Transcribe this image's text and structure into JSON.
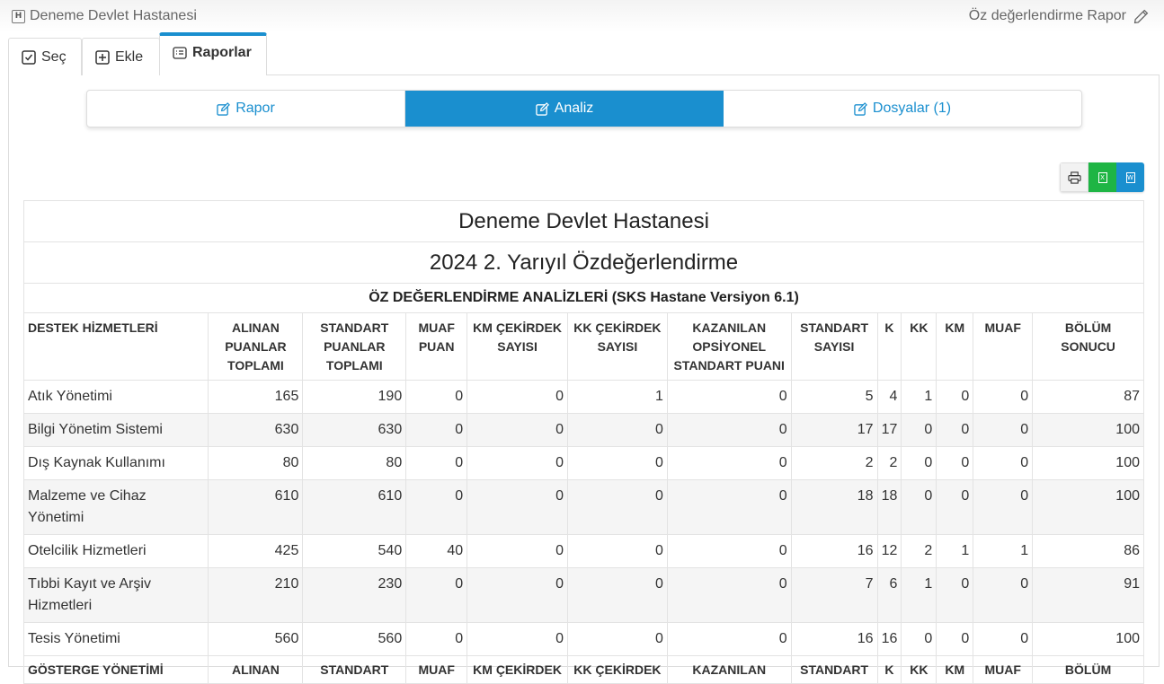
{
  "header": {
    "hospital_name": "Deneme Devlet Hastanesi",
    "report_link": "Öz değerlendirme Rapor"
  },
  "tabs": [
    {
      "label": "Seç",
      "icon": "check-square-icon"
    },
    {
      "label": "Ekle",
      "icon": "plus-square-icon"
    },
    {
      "label": "Raporlar",
      "icon": "list-alt-icon",
      "active": true
    }
  ],
  "segments": [
    {
      "label": "Rapor"
    },
    {
      "label": "Analiz",
      "active": true
    },
    {
      "label": "Dosyalar (1)"
    }
  ],
  "export": {
    "print_icon": "print-icon",
    "excel_icon": "excel-icon",
    "word_icon": "word-icon"
  },
  "report": {
    "title": "Deneme Devlet Hastanesi",
    "subtitle": "2024 2. Yarıyıl Özdeğerlendirme",
    "section_title": "ÖZ DEĞERLENDİRME ANALİZLERİ (SKS Hastane Versiyon 6.1)",
    "columns": [
      "DESTEK HİZMETLERİ",
      "ALINAN PUANLAR TOPLAMI",
      "STANDART PUANLAR TOPLAMI",
      "MUAF PUAN",
      "KM ÇEKİRDEK SAYISI",
      "KK ÇEKİRDEK SAYISI",
      "KAZANILAN OPSİYONEL STANDART PUANI",
      "STANDART SAYISI",
      "K",
      "KK",
      "KM",
      "MUAF",
      "BÖLÜM SONUCU"
    ],
    "rows": [
      [
        "Atık Yönetimi",
        "165",
        "190",
        "0",
        "0",
        "1",
        "0",
        "5",
        "4",
        "1",
        "0",
        "0",
        "87"
      ],
      [
        "Bilgi Yönetim Sistemi",
        "630",
        "630",
        "0",
        "0",
        "0",
        "0",
        "17",
        "17",
        "0",
        "0",
        "0",
        "100"
      ],
      [
        "Dış Kaynak Kullanımı",
        "80",
        "80",
        "0",
        "0",
        "0",
        "0",
        "2",
        "2",
        "0",
        "0",
        "0",
        "100"
      ],
      [
        "Malzeme ve Cihaz Yönetimi",
        "610",
        "610",
        "0",
        "0",
        "0",
        "0",
        "18",
        "18",
        "0",
        "0",
        "0",
        "100"
      ],
      [
        "Otelcilik Hizmetleri",
        "425",
        "540",
        "40",
        "0",
        "0",
        "0",
        "16",
        "12",
        "2",
        "1",
        "1",
        "86"
      ],
      [
        "Tıbbi Kayıt ve Arşiv Hizmetleri",
        "210",
        "230",
        "0",
        "0",
        "0",
        "0",
        "7",
        "6",
        "1",
        "0",
        "0",
        "91"
      ],
      [
        "Tesis Yönetimi",
        "560",
        "560",
        "0",
        "0",
        "0",
        "0",
        "16",
        "16",
        "0",
        "0",
        "0",
        "100"
      ]
    ],
    "columns2": [
      "GÖSTERGE YÖNETİMİ",
      "ALINAN",
      "STANDART",
      "MUAF",
      "KM ÇEKİRDEK",
      "KK ÇEKİRDEK",
      "KAZANILAN",
      "STANDART",
      "K",
      "KK",
      "KM",
      "MUAF",
      "BÖLÜM"
    ]
  }
}
